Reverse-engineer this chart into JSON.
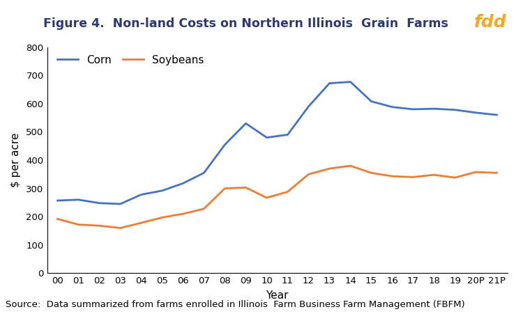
{
  "title": "Figure 4.  Non-land Costs on Northern Illinois  Grain  Farms",
  "xlabel": "Year",
  "ylabel": "$ per acre",
  "source": "Source:  Data summarized from farms enrolled in Illinois  Farm Business Farm Management (FBFM)",
  "x_labels": [
    "00",
    "01",
    "02",
    "03",
    "04",
    "05",
    "06",
    "07",
    "08",
    "09",
    "10",
    "11",
    "12",
    "13",
    "14",
    "15",
    "16",
    "17",
    "18",
    "19",
    "20P",
    "21P"
  ],
  "corn_values": [
    257,
    260,
    248,
    245,
    278,
    292,
    318,
    355,
    455,
    530,
    480,
    490,
    590,
    672,
    677,
    608,
    588,
    580,
    582,
    578,
    568,
    560
  ],
  "soy_values": [
    192,
    172,
    168,
    160,
    178,
    197,
    210,
    228,
    300,
    303,
    267,
    288,
    350,
    370,
    380,
    355,
    343,
    340,
    348,
    338,
    358,
    355
  ],
  "corn_color": "#4472C4",
  "soy_color": "#ED7D31",
  "ylim": [
    0,
    800
  ],
  "yticks": [
    0,
    100,
    200,
    300,
    400,
    500,
    600,
    700,
    800
  ],
  "fdd_bg_color": "#2E3A6E",
  "fdd_text_color": "#F5A623",
  "background_color": "#FFFFFF",
  "title_fontsize": 12.5,
  "axis_label_fontsize": 11,
  "tick_fontsize": 9.5,
  "legend_fontsize": 11,
  "source_fontsize": 9.5
}
